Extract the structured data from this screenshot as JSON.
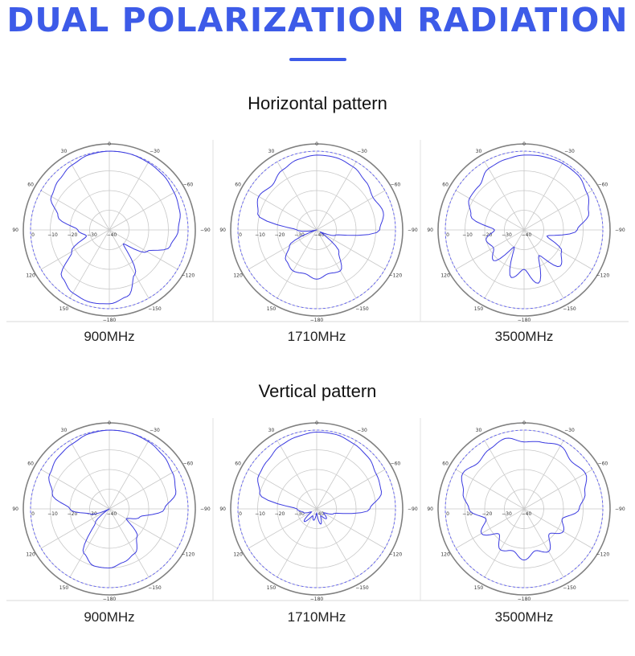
{
  "title": "DUAL POLARIZATION RADIATION",
  "colors": {
    "accent": "#3d5be8",
    "trace": "#3a3ae0",
    "grid": "#c8c8c8",
    "rim": "#808080"
  },
  "sections": [
    {
      "title": "Horizontal pattern",
      "charts": [
        {
          "frequency": "900MHz"
        },
        {
          "frequency": "1710MHz"
        },
        {
          "frequency": "3500MHz"
        }
      ]
    },
    {
      "title": "Vertical pattern",
      "charts": [
        {
          "frequency": "900MHz"
        },
        {
          "frequency": "1710MHz"
        },
        {
          "frequency": "3500MHz"
        }
      ]
    }
  ],
  "polar_axis": {
    "angle_labels": [
      "0",
      "30",
      "60",
      "90",
      "120",
      "150",
      "−180",
      "−150",
      "−120",
      "−90",
      "−60",
      "−30"
    ],
    "radial_labels": [
      "0",
      "−10",
      "−20",
      "−30",
      "−40"
    ]
  },
  "chart_data": [
    {
      "type": "polar",
      "title": "Horizontal pattern 900MHz",
      "r_unit": "dB",
      "rlim": [
        -40,
        0
      ],
      "angles_deg": [
        0,
        15,
        30,
        45,
        60,
        75,
        90,
        105,
        120,
        135,
        150,
        165,
        180,
        195,
        210,
        225,
        240,
        255,
        270,
        285,
        300,
        315,
        330,
        345
      ],
      "series": [
        {
          "values": [
            0,
            -0.5,
            -2,
            -4,
            -6,
            -13,
            -24,
            -28,
            -18,
            -6,
            -3,
            -2,
            -2.5,
            -5,
            -14,
            -30,
            -18,
            -8,
            -5,
            -3,
            -2,
            -1,
            -0.5,
            0
          ]
        }
      ]
    },
    {
      "type": "polar",
      "title": "Horizontal pattern 1710MHz",
      "r_unit": "dB",
      "rlim": [
        -40,
        0
      ],
      "angles_deg": [
        0,
        15,
        30,
        45,
        60,
        75,
        90,
        105,
        120,
        135,
        150,
        165,
        180,
        195,
        210,
        225,
        240,
        255,
        270,
        285,
        300,
        315,
        330,
        345
      ],
      "series": [
        {
          "values": [
            -2,
            -3,
            -5,
            -8,
            -6,
            -9,
            -30,
            -40,
            -24,
            -18,
            -16,
            -17,
            -15,
            -17,
            -16,
            -24,
            -38,
            -30,
            -8,
            -5,
            -7,
            -5,
            -3,
            -2
          ]
        }
      ]
    },
    {
      "type": "polar",
      "title": "Horizontal pattern 3500MHz",
      "r_unit": "dB",
      "rlim": [
        -40,
        0
      ],
      "angles_deg": [
        0,
        15,
        30,
        45,
        60,
        75,
        90,
        105,
        120,
        135,
        150,
        165,
        180,
        195,
        210,
        225,
        240,
        255,
        270,
        285,
        300,
        315,
        330,
        345
      ],
      "series": [
        {
          "values": [
            -2,
            -3,
            -4,
            -8,
            -8,
            -12,
            -25,
            -20,
            -22,
            -18,
            -30,
            -15,
            -20,
            -12,
            -25,
            -14,
            -18,
            -28,
            -13,
            -6,
            -3,
            -1,
            -1,
            -1.5
          ]
        }
      ]
    },
    {
      "type": "polar",
      "title": "Vertical pattern 900MHz",
      "r_unit": "dB",
      "rlim": [
        -40,
        0
      ],
      "angles_deg": [
        0,
        15,
        30,
        45,
        60,
        75,
        90,
        105,
        120,
        135,
        150,
        165,
        180,
        195,
        210,
        225,
        240,
        255,
        270,
        285,
        300,
        315,
        330,
        345
      ],
      "series": [
        {
          "values": [
            0,
            -0.5,
            -2,
            -3,
            -5,
            -10,
            -20,
            -30,
            -40,
            -30,
            -14,
            -10,
            -10,
            -12,
            -14,
            -20,
            -30,
            -24,
            -12,
            -5,
            -3,
            -1.5,
            -0.5,
            0
          ]
        }
      ]
    },
    {
      "type": "polar",
      "title": "Vertical pattern 1710MHz",
      "r_unit": "dB",
      "rlim": [
        -40,
        0
      ],
      "angles_deg": [
        0,
        15,
        30,
        45,
        60,
        75,
        90,
        105,
        120,
        135,
        150,
        165,
        180,
        195,
        210,
        225,
        240,
        255,
        270,
        285,
        300,
        315,
        330,
        345
      ],
      "series": [
        {
          "values": [
            -1,
            -2,
            -3,
            -5,
            -6,
            -10,
            -30,
            -33,
            -37,
            -31,
            -36,
            -34,
            -38,
            -32,
            -36,
            -33,
            -36,
            -31,
            -13,
            -6,
            -5,
            -3,
            -2,
            -1
          ]
        }
      ]
    },
    {
      "type": "polar",
      "title": "Vertical pattern 3500MHz",
      "r_unit": "dB",
      "rlim": [
        -40,
        0
      ],
      "angles_deg": [
        0,
        15,
        30,
        45,
        60,
        75,
        90,
        105,
        120,
        135,
        150,
        165,
        180,
        195,
        210,
        225,
        240,
        255,
        270,
        285,
        300,
        315,
        330,
        345
      ],
      "series": [
        {
          "values": [
            -6,
            -3,
            -5,
            -7,
            -4,
            -8,
            -12,
            -20,
            -15,
            -22,
            -16,
            -18,
            -14,
            -18,
            -15,
            -22,
            -17,
            -20,
            -12,
            -8,
            -4,
            -6,
            -3,
            -5
          ]
        }
      ]
    }
  ]
}
